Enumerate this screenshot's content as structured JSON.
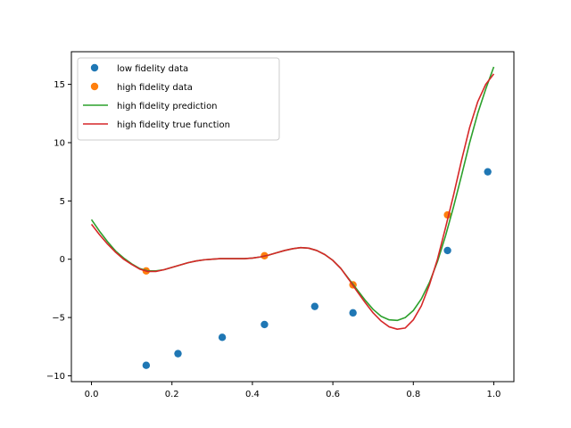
{
  "chart_data": {
    "type": "line",
    "title": "",
    "xlabel": "",
    "ylabel": "",
    "xlim": [
      -0.05,
      1.05
    ],
    "ylim": [
      -10.5,
      17.8
    ],
    "xticks": [
      0.0,
      0.2,
      0.4,
      0.6,
      0.8,
      1.0
    ],
    "xtick_labels": [
      "0.0",
      "0.2",
      "0.4",
      "0.6",
      "0.8",
      "1.0"
    ],
    "yticks": [
      -10,
      -5,
      0,
      5,
      10,
      15
    ],
    "ytick_labels": [
      "−10",
      "−5",
      "0",
      "5",
      "10",
      "15"
    ],
    "grid": false,
    "legend_position": "upper-left",
    "series": [
      {
        "name": "low fidelity data",
        "kind": "scatter",
        "color": "#1f77b4",
        "points": [
          [
            0.136,
            -9.1
          ],
          [
            0.215,
            -8.1
          ],
          [
            0.325,
            -6.7
          ],
          [
            0.43,
            -5.6
          ],
          [
            0.555,
            -4.05
          ],
          [
            0.65,
            -4.6
          ],
          [
            0.885,
            0.75
          ],
          [
            0.985,
            7.5
          ]
        ]
      },
      {
        "name": "high fidelity data",
        "kind": "scatter",
        "color": "#ff7f0e",
        "points": [
          [
            0.136,
            -1.0
          ],
          [
            0.43,
            0.3
          ],
          [
            0.65,
            -2.2
          ],
          [
            0.885,
            3.8
          ]
        ]
      },
      {
        "name": "high fidelity prediction",
        "kind": "line",
        "color": "#2ca02c",
        "points": [
          [
            0.0,
            3.4
          ],
          [
            0.02,
            2.4
          ],
          [
            0.04,
            1.5
          ],
          [
            0.06,
            0.7
          ],
          [
            0.08,
            0.1
          ],
          [
            0.1,
            -0.4
          ],
          [
            0.12,
            -0.8
          ],
          [
            0.14,
            -1.0
          ],
          [
            0.16,
            -1.0
          ],
          [
            0.18,
            -0.9
          ],
          [
            0.2,
            -0.7
          ],
          [
            0.22,
            -0.5
          ],
          [
            0.24,
            -0.3
          ],
          [
            0.26,
            -0.15
          ],
          [
            0.28,
            -0.05
          ],
          [
            0.3,
            0.0
          ],
          [
            0.32,
            0.05
          ],
          [
            0.34,
            0.05
          ],
          [
            0.36,
            0.05
          ],
          [
            0.38,
            0.05
          ],
          [
            0.4,
            0.1
          ],
          [
            0.42,
            0.2
          ],
          [
            0.44,
            0.35
          ],
          [
            0.46,
            0.55
          ],
          [
            0.48,
            0.75
          ],
          [
            0.5,
            0.9
          ],
          [
            0.52,
            1.0
          ],
          [
            0.54,
            0.95
          ],
          [
            0.56,
            0.75
          ],
          [
            0.58,
            0.4
          ],
          [
            0.6,
            -0.1
          ],
          [
            0.62,
            -0.8
          ],
          [
            0.64,
            -1.7
          ],
          [
            0.66,
            -2.6
          ],
          [
            0.68,
            -3.5
          ],
          [
            0.7,
            -4.3
          ],
          [
            0.72,
            -4.9
          ],
          [
            0.74,
            -5.2
          ],
          [
            0.76,
            -5.25
          ],
          [
            0.78,
            -5.0
          ],
          [
            0.8,
            -4.4
          ],
          [
            0.82,
            -3.4
          ],
          [
            0.84,
            -2.0
          ],
          [
            0.86,
            -0.2
          ],
          [
            0.88,
            2.0
          ],
          [
            0.9,
            4.5
          ],
          [
            0.92,
            7.2
          ],
          [
            0.94,
            10.0
          ],
          [
            0.96,
            12.5
          ],
          [
            0.98,
            14.6
          ],
          [
            1.0,
            16.5
          ]
        ]
      },
      {
        "name": "high fidelity true function",
        "kind": "line",
        "color": "#d62728",
        "points": [
          [
            0.0,
            3.0
          ],
          [
            0.02,
            2.1
          ],
          [
            0.04,
            1.3
          ],
          [
            0.06,
            0.6
          ],
          [
            0.08,
            0.0
          ],
          [
            0.1,
            -0.45
          ],
          [
            0.12,
            -0.85
          ],
          [
            0.14,
            -1.05
          ],
          [
            0.16,
            -1.05
          ],
          [
            0.18,
            -0.9
          ],
          [
            0.2,
            -0.7
          ],
          [
            0.22,
            -0.5
          ],
          [
            0.24,
            -0.3
          ],
          [
            0.26,
            -0.15
          ],
          [
            0.28,
            -0.05
          ],
          [
            0.3,
            0.0
          ],
          [
            0.32,
            0.05
          ],
          [
            0.34,
            0.05
          ],
          [
            0.36,
            0.05
          ],
          [
            0.38,
            0.05
          ],
          [
            0.4,
            0.1
          ],
          [
            0.42,
            0.2
          ],
          [
            0.44,
            0.35
          ],
          [
            0.46,
            0.55
          ],
          [
            0.48,
            0.75
          ],
          [
            0.5,
            0.9
          ],
          [
            0.52,
            1.0
          ],
          [
            0.54,
            0.95
          ],
          [
            0.56,
            0.75
          ],
          [
            0.58,
            0.4
          ],
          [
            0.6,
            -0.1
          ],
          [
            0.62,
            -0.8
          ],
          [
            0.64,
            -1.75
          ],
          [
            0.66,
            -2.75
          ],
          [
            0.68,
            -3.7
          ],
          [
            0.7,
            -4.6
          ],
          [
            0.72,
            -5.3
          ],
          [
            0.74,
            -5.8
          ],
          [
            0.76,
            -6.0
          ],
          [
            0.78,
            -5.9
          ],
          [
            0.8,
            -5.2
          ],
          [
            0.82,
            -4.0
          ],
          [
            0.84,
            -2.2
          ],
          [
            0.86,
            0.0
          ],
          [
            0.88,
            2.7
          ],
          [
            0.9,
            5.5
          ],
          [
            0.92,
            8.5
          ],
          [
            0.94,
            11.3
          ],
          [
            0.96,
            13.5
          ],
          [
            0.98,
            15.0
          ],
          [
            1.0,
            15.9
          ]
        ]
      }
    ]
  }
}
